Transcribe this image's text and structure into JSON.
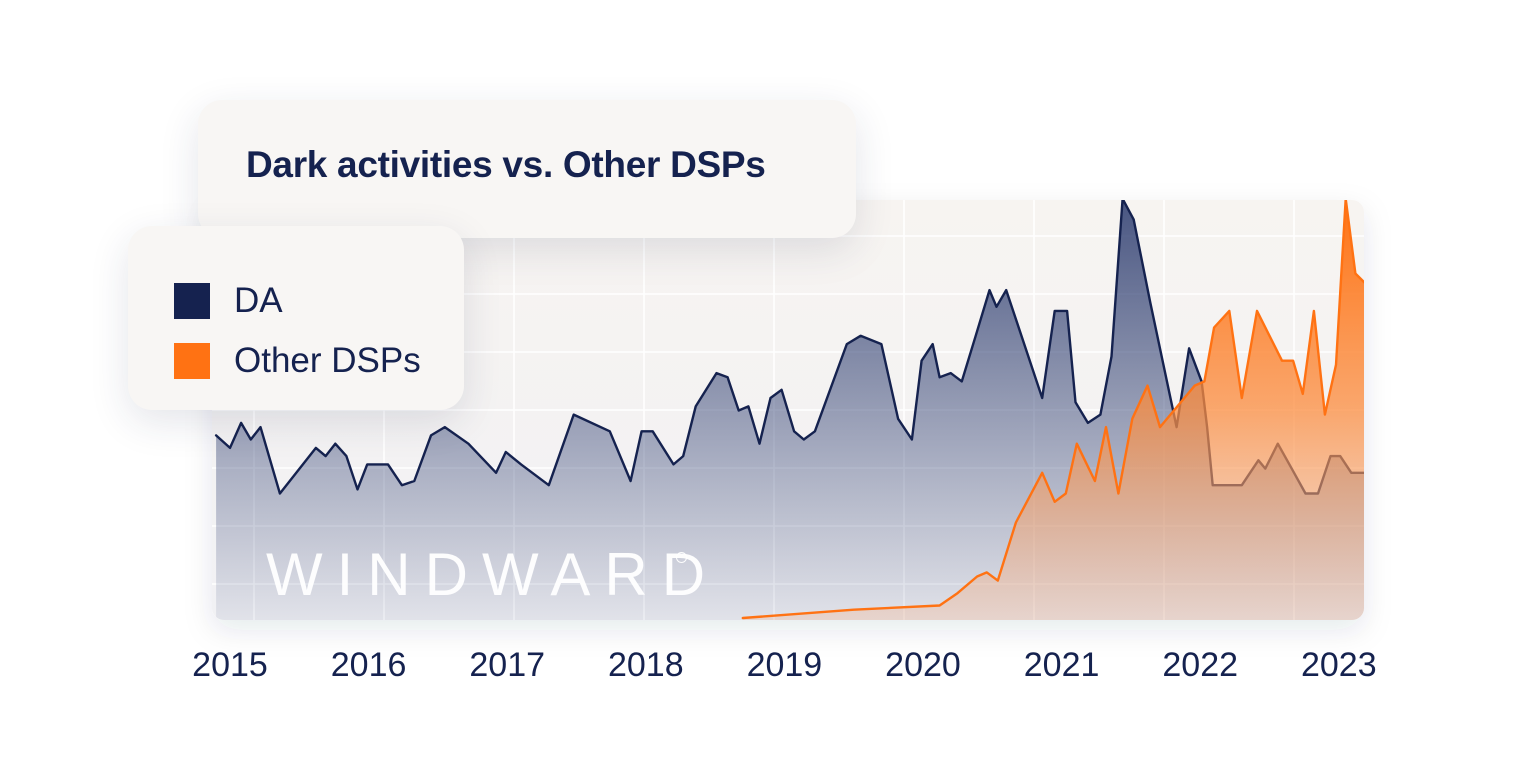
{
  "chart_data": {
    "type": "area",
    "title": "Dark activities vs. Other DSPs",
    "xlabel": "",
    "ylabel": "",
    "x_ticks": [
      "2015",
      "2016",
      "2017",
      "2018",
      "2019",
      "2020",
      "2021",
      "2022",
      "2023"
    ],
    "xlim": [
      2015.0,
      2023.25
    ],
    "ylim": [
      0,
      100
    ],
    "grid": true,
    "legend_position": "left, over chart",
    "series": [
      {
        "name": "DA",
        "color": "#15224f",
        "points": [
          [
            2014.9,
            44
          ],
          [
            2015.0,
            41
          ],
          [
            2015.08,
            47
          ],
          [
            2015.15,
            43
          ],
          [
            2015.22,
            46
          ],
          [
            2015.36,
            30
          ],
          [
            2015.62,
            41
          ],
          [
            2015.69,
            39
          ],
          [
            2015.76,
            42
          ],
          [
            2015.84,
            39
          ],
          [
            2015.92,
            31
          ],
          [
            2015.99,
            37
          ],
          [
            2016.14,
            37
          ],
          [
            2016.24,
            32
          ],
          [
            2016.33,
            33
          ],
          [
            2016.45,
            44
          ],
          [
            2016.55,
            46
          ],
          [
            2016.72,
            42
          ],
          [
            2016.92,
            35
          ],
          [
            2016.99,
            40
          ],
          [
            2017.1,
            37
          ],
          [
            2017.3,
            32
          ],
          [
            2017.48,
            49
          ],
          [
            2017.74,
            45
          ],
          [
            2017.89,
            33
          ],
          [
            2017.97,
            45
          ],
          [
            2018.05,
            45
          ],
          [
            2018.2,
            37
          ],
          [
            2018.27,
            39
          ],
          [
            2018.36,
            51
          ],
          [
            2018.51,
            59
          ],
          [
            2018.59,
            58
          ],
          [
            2018.67,
            50
          ],
          [
            2018.74,
            51
          ],
          [
            2018.82,
            42
          ],
          [
            2018.9,
            53
          ],
          [
            2018.98,
            55
          ],
          [
            2019.07,
            45
          ],
          [
            2019.14,
            43
          ],
          [
            2019.22,
            45
          ],
          [
            2019.45,
            66
          ],
          [
            2019.55,
            68
          ],
          [
            2019.7,
            66
          ],
          [
            2019.82,
            48
          ],
          [
            2019.92,
            43
          ],
          [
            2019.99,
            62
          ],
          [
            2020.07,
            66
          ],
          [
            2020.12,
            58
          ],
          [
            2020.2,
            59
          ],
          [
            2020.28,
            57
          ],
          [
            2020.38,
            68
          ],
          [
            2020.48,
            79
          ],
          [
            2020.53,
            75
          ],
          [
            2020.6,
            79
          ],
          [
            2020.86,
            53
          ],
          [
            2020.95,
            74
          ],
          [
            2021.04,
            74
          ],
          [
            2021.1,
            52
          ],
          [
            2021.19,
            47
          ],
          [
            2021.28,
            49
          ],
          [
            2021.36,
            63
          ],
          [
            2021.44,
            101
          ],
          [
            2021.52,
            96
          ],
          [
            2021.64,
            76
          ],
          [
            2021.83,
            46
          ],
          [
            2021.92,
            65
          ],
          [
            2022.01,
            57
          ],
          [
            2022.05,
            46
          ],
          [
            2022.09,
            32
          ],
          [
            2022.3,
            32
          ],
          [
            2022.42,
            38
          ],
          [
            2022.47,
            36
          ],
          [
            2022.56,
            42
          ],
          [
            2022.66,
            36
          ],
          [
            2022.76,
            30
          ],
          [
            2022.85,
            30
          ],
          [
            2022.94,
            39
          ],
          [
            2023.01,
            39
          ],
          [
            2023.09,
            35
          ],
          [
            2023.25,
            35
          ]
        ]
      },
      {
        "name": "Other DSPs",
        "color": "#ff7213",
        "points": [
          [
            2018.7,
            0
          ],
          [
            2019.5,
            2
          ],
          [
            2020.12,
            3
          ],
          [
            2020.25,
            6
          ],
          [
            2020.39,
            10
          ],
          [
            2020.46,
            11
          ],
          [
            2020.54,
            9
          ],
          [
            2020.67,
            23
          ],
          [
            2020.86,
            35
          ],
          [
            2020.95,
            28
          ],
          [
            2021.03,
            30
          ],
          [
            2021.11,
            42
          ],
          [
            2021.24,
            33
          ],
          [
            2021.32,
            46
          ],
          [
            2021.41,
            30
          ],
          [
            2021.51,
            48
          ],
          [
            2021.62,
            56
          ],
          [
            2021.71,
            46
          ],
          [
            2021.96,
            56
          ],
          [
            2022.03,
            57
          ],
          [
            2022.1,
            70
          ],
          [
            2022.21,
            74
          ],
          [
            2022.3,
            53
          ],
          [
            2022.41,
            74
          ],
          [
            2022.59,
            62
          ],
          [
            2022.67,
            62
          ],
          [
            2022.74,
            54
          ],
          [
            2022.82,
            74
          ],
          [
            2022.9,
            49
          ],
          [
            2022.98,
            61
          ],
          [
            2023.05,
            101
          ],
          [
            2023.12,
            83
          ],
          [
            2023.21,
            80
          ],
          [
            2023.25,
            98
          ]
        ]
      }
    ]
  },
  "legend": {
    "items": [
      {
        "label": "DA",
        "color": "#15224f"
      },
      {
        "label": "Other DSPs",
        "color": "#ff7213"
      }
    ]
  },
  "watermark": "WINDWARD"
}
